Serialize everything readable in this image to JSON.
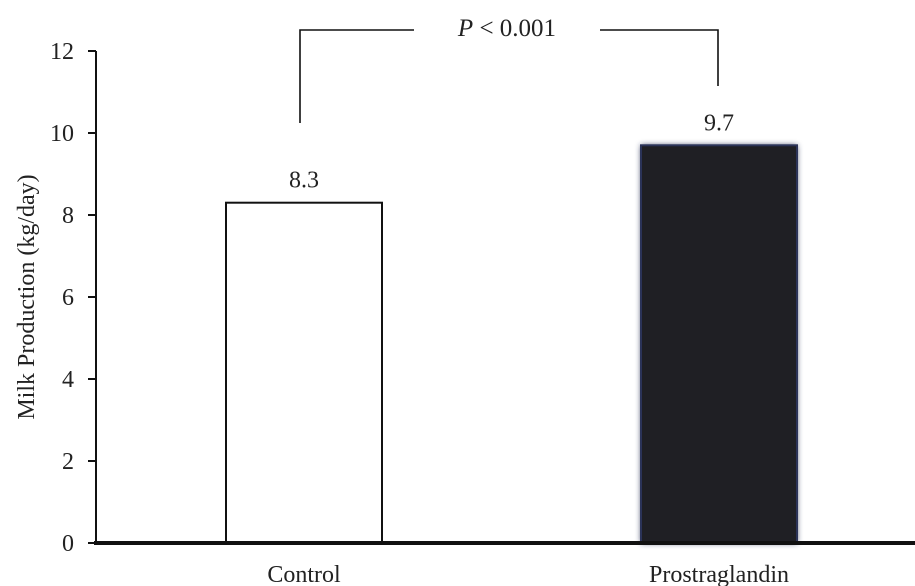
{
  "chart_data": {
    "type": "bar",
    "categories": [
      "Control",
      "Prostraglandin"
    ],
    "values": [
      8.3,
      9.7
    ],
    "data_labels": [
      "8.3",
      "9.7"
    ],
    "ylabel": "Milk Production (kg/day)",
    "ylim": [
      0,
      12
    ],
    "yticks": [
      0,
      2,
      4,
      6,
      8,
      10,
      12
    ],
    "ytick_labels": [
      "0",
      "2",
      "4",
      "6",
      "8",
      "10",
      "12"
    ],
    "bar_colors": [
      "#ffffff",
      "#1f1f24"
    ],
    "bar_edge_colors": [
      "#111111",
      "#2b3358"
    ],
    "grid": false,
    "annotation": {
      "prefix": "P",
      "text": " < 0.001"
    }
  }
}
